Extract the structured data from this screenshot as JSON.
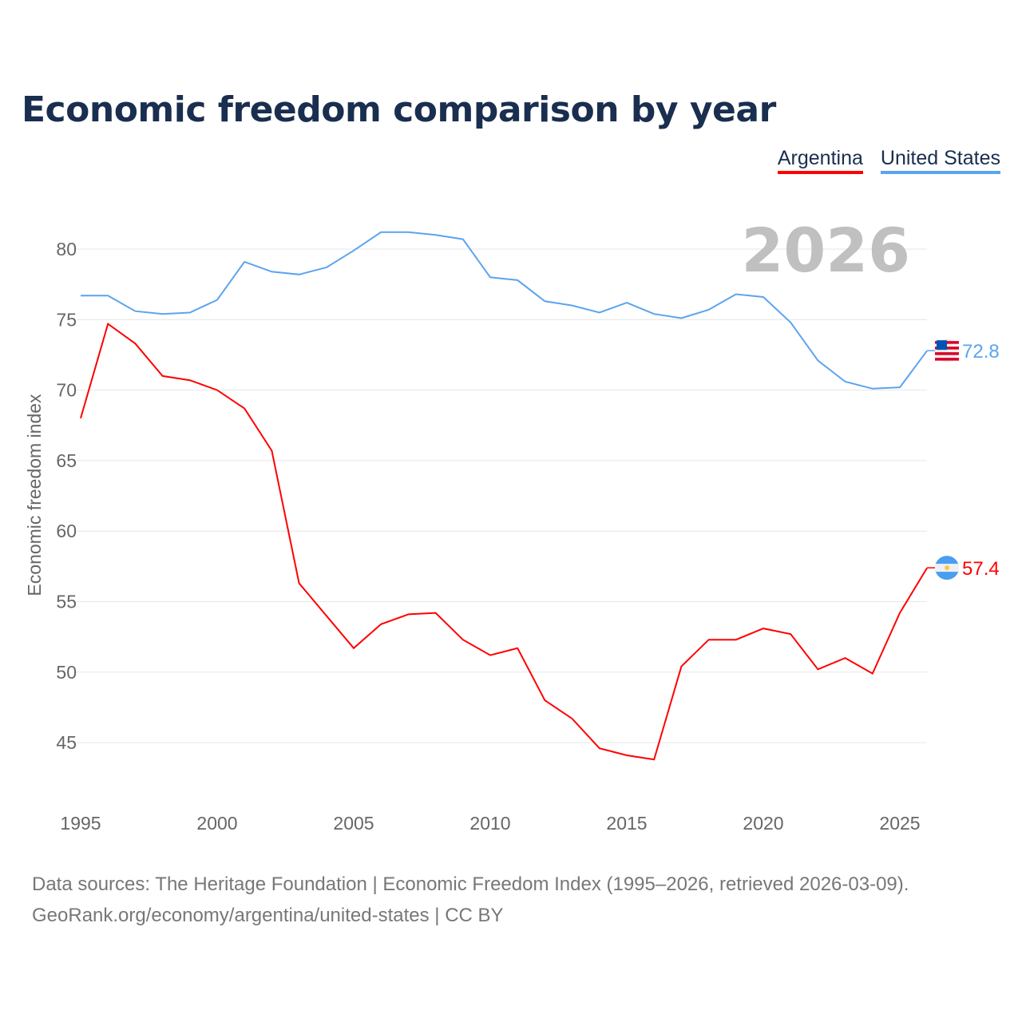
{
  "chart_data": {
    "type": "line",
    "title": "Economic freedom comparison by year",
    "ylabel": "Economic freedom index",
    "xlabel": "",
    "ylim": [
      42,
      83
    ],
    "xlim": [
      1995,
      2026
    ],
    "yticks": [
      45,
      50,
      55,
      60,
      65,
      70,
      75,
      80
    ],
    "xticks": [
      1995,
      2000,
      2005,
      2010,
      2015,
      2020,
      2025
    ],
    "grid": true,
    "legend_placement": "top-right",
    "current_year_label": "2026",
    "x": [
      1995,
      1996,
      1997,
      1998,
      1999,
      2000,
      2001,
      2002,
      2003,
      2004,
      2005,
      2006,
      2007,
      2008,
      2009,
      2010,
      2011,
      2012,
      2013,
      2014,
      2015,
      2016,
      2017,
      2018,
      2019,
      2020,
      2021,
      2022,
      2023,
      2024,
      2025,
      2026
    ],
    "series": [
      {
        "name": "Argentina",
        "color": "#ff0000",
        "end_label": "57.4",
        "values": [
          68.0,
          74.7,
          73.3,
          71.0,
          70.7,
          70.0,
          68.7,
          65.7,
          56.3,
          54.0,
          51.7,
          53.4,
          54.1,
          54.2,
          52.3,
          51.2,
          51.7,
          48.0,
          46.7,
          44.6,
          44.1,
          43.8,
          50.4,
          52.3,
          52.3,
          53.1,
          52.7,
          50.2,
          51.0,
          49.9,
          54.2,
          57.4
        ]
      },
      {
        "name": "United States",
        "color": "#5ba4ee",
        "end_label": "72.8",
        "values": [
          76.7,
          76.7,
          75.6,
          75.4,
          75.5,
          76.4,
          79.1,
          78.4,
          78.2,
          78.7,
          79.9,
          81.2,
          81.2,
          81.0,
          80.7,
          78.0,
          77.8,
          76.3,
          76.0,
          75.5,
          76.2,
          75.4,
          75.1,
          75.7,
          76.8,
          76.6,
          74.8,
          72.1,
          70.6,
          70.1,
          70.2,
          72.8
        ]
      }
    ]
  },
  "footer": {
    "line1": "Data sources: The Heritage Foundation | Economic Freedom Index (1995–2026, retrieved 2026-03-09).",
    "line2": "GeoRank.org/economy/argentina/united-states | CC BY"
  }
}
